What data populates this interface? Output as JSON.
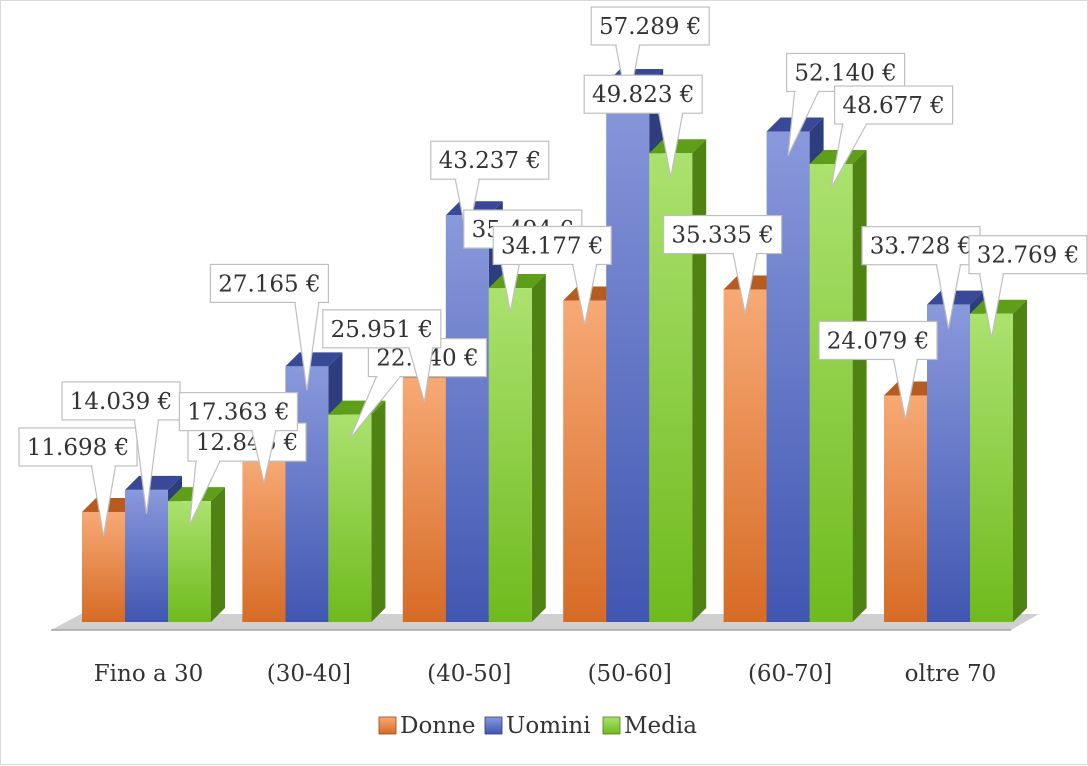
{
  "chart_data": {
    "type": "bar",
    "title": "",
    "xlabel": "",
    "ylabel": "",
    "ylim": [
      0,
      60000
    ],
    "grid": false,
    "legend_placement": "bottom",
    "categories": [
      "Fino a 30",
      "(30-40]",
      "(40-50]",
      "(50-60]",
      "(60-70]",
      "oltre 70"
    ],
    "series": [
      {
        "name": "Donne",
        "color": "#f37a2a",
        "values": [
          11698,
          17363,
          25951,
          34177,
          35335,
          24079
        ],
        "labels": [
          "11.698 €",
          "17.363 €",
          "25.951 €",
          "34.177 €",
          "35.335 €",
          "24.079 €"
        ]
      },
      {
        "name": "Uomini",
        "color": "#4a62c9",
        "values": [
          14039,
          27165,
          43237,
          57289,
          52140,
          33728
        ],
        "labels": [
          "14.039 €",
          "27.165 €",
          "43.237 €",
          "57.289 €",
          "52.140 €",
          "33.728 €"
        ]
      },
      {
        "name": "Media",
        "color": "#7ed321",
        "values": [
          12846,
          22040,
          35494,
          49823,
          48677,
          32769
        ],
        "labels": [
          "12.846 €",
          "22.040 €",
          "35.494 €",
          "49.823 €",
          "48.677 €",
          "32.769 €"
        ]
      }
    ]
  }
}
